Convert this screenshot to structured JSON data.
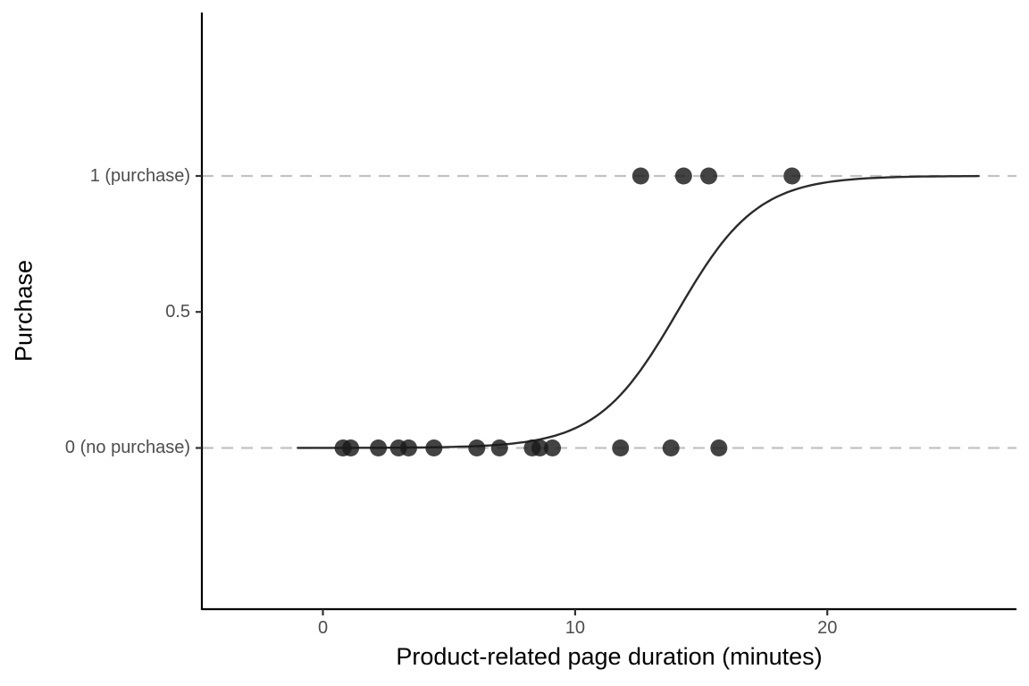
{
  "chart_data": {
    "type": "scatter",
    "title": "",
    "xlabel": "Product-related page duration (minutes)",
    "ylabel": "Purchase",
    "x_ticks": [
      {
        "value": 0,
        "label": "0"
      },
      {
        "value": 10,
        "label": "10"
      },
      {
        "value": 20,
        "label": "20"
      }
    ],
    "y_ticks": [
      {
        "value": 1,
        "label": "1 (purchase)"
      },
      {
        "value": 0.5,
        "label": "0.5"
      },
      {
        "value": 0,
        "label": "0 (no purchase)"
      }
    ],
    "xlim": [
      -4.8,
      27.5
    ],
    "ylim": [
      -0.593,
      1.601
    ],
    "grid": "dashed horizontal lines at y=0 and y=1 only",
    "gridlines_y": [
      0,
      1
    ],
    "legend_position": "none",
    "series": [
      {
        "name": "purchase (y=1)",
        "y": 1,
        "x": [
          12.6,
          14.3,
          15.3,
          18.6
        ]
      },
      {
        "name": "no purchase (y=0)",
        "y": 0,
        "x": [
          0.8,
          1.1,
          2.2,
          3.0,
          3.4,
          4.4,
          6.1,
          7.0,
          8.3,
          8.6,
          9.1,
          11.8,
          13.8,
          15.7
        ]
      }
    ],
    "fit_curve": {
      "type": "logistic",
      "formula": "p = 1/(1+exp(-k*(x-x0)))",
      "x0": 14.05,
      "k": 0.63,
      "x_range": [
        -1.0,
        26.0
      ]
    },
    "colors": {
      "background": "#ffffff",
      "point": "#1a1a1a",
      "point_alpha": 0.82,
      "curve": "#2b2b2b",
      "gridline": "#c2c2c2",
      "axis_line": "#000000",
      "tick_mark": "#333333",
      "tick_label": "#4d4d4d",
      "axis_title": "#000000"
    }
  }
}
